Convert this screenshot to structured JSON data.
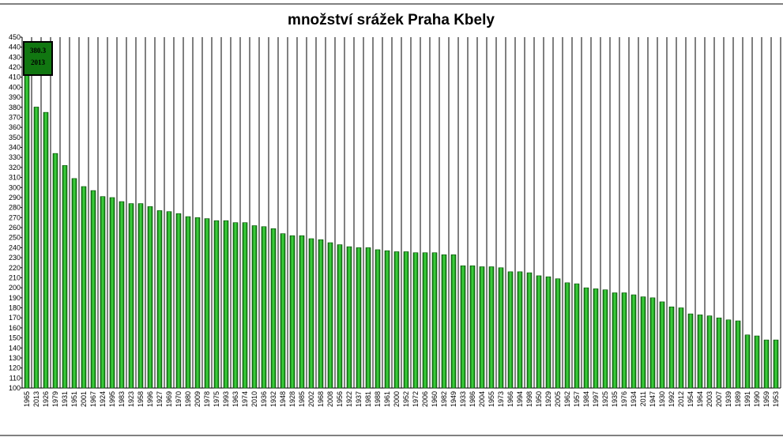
{
  "chart_data": {
    "type": "bar",
    "title": "množství srážek Praha Kbely",
    "categories": [
      "1965",
      "2013",
      "1926",
      "1979",
      "1931",
      "1951",
      "2001",
      "1967",
      "1924",
      "1995",
      "1983",
      "1923",
      "1958",
      "1996",
      "1927",
      "1969",
      "1970",
      "1980",
      "2009",
      "1978",
      "1975",
      "1993",
      "1963",
      "1974",
      "2010",
      "1936",
      "1932",
      "1948",
      "1928",
      "1985",
      "2002",
      "1968",
      "2008",
      "1956",
      "1922",
      "1937",
      "1981",
      "1988",
      "1961",
      "2000",
      "1952",
      "1972",
      "2006",
      "1960",
      "1982",
      "1949",
      "1933",
      "1986",
      "2004",
      "1955",
      "1973",
      "1966",
      "1994",
      "1998",
      "1950",
      "1929",
      "2005",
      "1962",
      "1957",
      "1984",
      "1997",
      "1925",
      "1935",
      "1976",
      "1934",
      "2011",
      "1947",
      "1930",
      "1992",
      "2012",
      "1954",
      "1964",
      "2003",
      "2007",
      "1939",
      "1989",
      "1991",
      "1990",
      "1959",
      "1953"
    ],
    "values": [
      415,
      380.3,
      375,
      334,
      322,
      309,
      301,
      297,
      291,
      290,
      286,
      284,
      284,
      281,
      277,
      276,
      274,
      271,
      270,
      269,
      267,
      267,
      265,
      265,
      262,
      261,
      259,
      254,
      252,
      252,
      249,
      248,
      245,
      243,
      241,
      240,
      240,
      238,
      237,
      236,
      236,
      235,
      235,
      235,
      233,
      233,
      222,
      222,
      221,
      221,
      220,
      216,
      216,
      215,
      212,
      211,
      209,
      205,
      204,
      200,
      199,
      198,
      195,
      195,
      193,
      191,
      190,
      186,
      181,
      180,
      174,
      173,
      172,
      170,
      168,
      167,
      153,
      152,
      148,
      148
    ],
    "color": "#22bb22",
    "annotation": {
      "value": "380.3",
      "year": "2013"
    },
    "ylim": [
      100,
      450
    ],
    "yticks": [
      100,
      110,
      120,
      130,
      140,
      150,
      160,
      170,
      180,
      190,
      200,
      210,
      220,
      230,
      240,
      250,
      260,
      270,
      280,
      290,
      300,
      310,
      320,
      330,
      340,
      350,
      360,
      370,
      380,
      390,
      400,
      410,
      420,
      430,
      440,
      450
    ],
    "grid": true
  }
}
